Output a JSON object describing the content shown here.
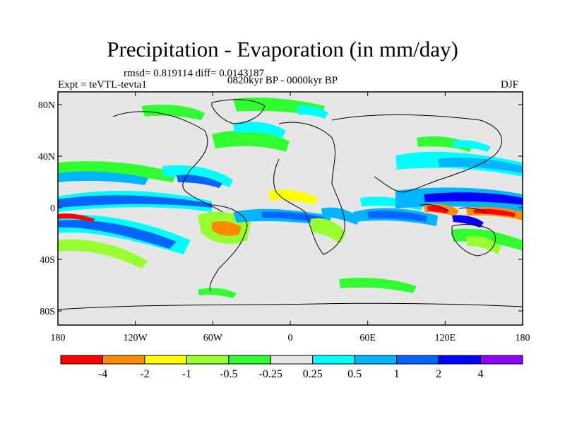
{
  "title": "Precipitation - Evaporation (in mm/day)",
  "stats": "rmsd= 0.819114 diff= 0.0143187",
  "period": "0820kyr BP - 0000kyr BP",
  "experiment": "Expt = teVTL-tevta1",
  "season": "DJF",
  "map": {
    "lat_ticks": [
      "80N",
      "40N",
      "0",
      "40S",
      "80S"
    ],
    "lon_ticks": [
      "180",
      "120W",
      "60W",
      "0",
      "60E",
      "120E",
      "180"
    ],
    "background_color": "#e6e6e6"
  },
  "colorbar": {
    "labels": [
      "-4",
      "-2",
      "-1",
      "-0.5",
      "-0.25",
      "0.25",
      "0.5",
      "1",
      "2",
      "4"
    ],
    "colors": [
      "#ff0000",
      "#ff8c00",
      "#ffff00",
      "#9aff32",
      "#32ff32",
      "#e6e6e6",
      "#00ffff",
      "#00b4ff",
      "#0064ff",
      "#0000ff",
      "#8c00ff"
    ]
  }
}
